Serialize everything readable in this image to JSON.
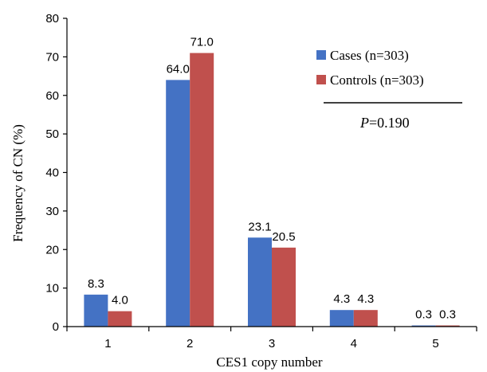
{
  "chart_data": {
    "type": "bar",
    "categories": [
      "1",
      "2",
      "3",
      "4",
      "5"
    ],
    "series": [
      {
        "name": "Cases (n=303)",
        "values": [
          8.3,
          64.0,
          23.1,
          4.3,
          0.3
        ],
        "labels": [
          "8.3",
          "64.0",
          "23.1",
          "4.3",
          "0.3"
        ],
        "color": "#4472C4"
      },
      {
        "name": "Controls (n=303)",
        "values": [
          4.0,
          71.0,
          20.5,
          4.3,
          0.3
        ],
        "labels": [
          "4.0",
          "71.0",
          "20.5",
          "4.3",
          "0.3"
        ],
        "color": "#C0504D"
      }
    ],
    "xlabel": "CES1 copy number",
    "ylabel": "Frequency of CN (%)",
    "ylim": [
      0,
      80
    ],
    "yticks": [
      0,
      10,
      20,
      30,
      40,
      50,
      60,
      70,
      80
    ],
    "grid": false,
    "legend_placement": "top-right",
    "annotation": {
      "p_symbol": "P",
      "p_value": "=0.190"
    }
  }
}
